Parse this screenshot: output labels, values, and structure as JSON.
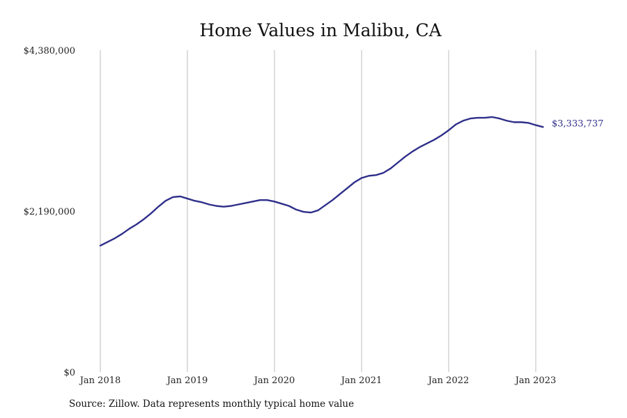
{
  "chart_data": {
    "type": "line",
    "title": "Home Values in Malibu, CA",
    "xlabel": "",
    "ylabel": "",
    "ylim": [
      0,
      4380000
    ],
    "y_ticks": [
      {
        "value": 0,
        "label": "$0"
      },
      {
        "value": 2190000,
        "label": "$2,190,000"
      },
      {
        "value": 4380000,
        "label": "$4,380,000"
      }
    ],
    "x_ticks": [
      {
        "value": "2018-01",
        "label": "Jan 2018"
      },
      {
        "value": "2019-01",
        "label": "Jan 2019"
      },
      {
        "value": "2020-01",
        "label": "Jan 2020"
      },
      {
        "value": "2021-01",
        "label": "Jan 2021"
      },
      {
        "value": "2022-01",
        "label": "Jan 2022"
      },
      {
        "value": "2023-01",
        "label": "Jan 2023"
      }
    ],
    "grid": {
      "vertical": true,
      "horizontal": false
    },
    "legend": "none",
    "series": [
      {
        "color": "#2e2f8a",
        "end_label": "$3,333,737",
        "x": [
          "2018-01",
          "2018-02",
          "2018-03",
          "2018-04",
          "2018-05",
          "2018-06",
          "2018-07",
          "2018-08",
          "2018-09",
          "2018-10",
          "2018-11",
          "2018-12",
          "2019-01",
          "2019-02",
          "2019-03",
          "2019-04",
          "2019-05",
          "2019-06",
          "2019-07",
          "2019-08",
          "2019-09",
          "2019-10",
          "2019-11",
          "2019-12",
          "2020-01",
          "2020-02",
          "2020-03",
          "2020-04",
          "2020-05",
          "2020-06",
          "2020-07",
          "2020-08",
          "2020-09",
          "2020-10",
          "2020-11",
          "2020-12",
          "2021-01",
          "2021-02",
          "2021-03",
          "2021-04",
          "2021-05",
          "2021-06",
          "2021-07",
          "2021-08",
          "2021-09",
          "2021-10",
          "2021-11",
          "2021-12",
          "2022-01",
          "2022-02",
          "2022-03",
          "2022-04",
          "2022-05",
          "2022-06",
          "2022-07",
          "2022-08",
          "2022-09",
          "2022-10",
          "2022-11",
          "2022-12",
          "2023-01",
          "2023-02"
        ],
        "values": [
          1720000,
          1770000,
          1820000,
          1880000,
          1950000,
          2010000,
          2080000,
          2160000,
          2250000,
          2330000,
          2380000,
          2390000,
          2360000,
          2330000,
          2310000,
          2280000,
          2260000,
          2250000,
          2260000,
          2280000,
          2300000,
          2320000,
          2340000,
          2340000,
          2320000,
          2290000,
          2260000,
          2210000,
          2180000,
          2170000,
          2200000,
          2270000,
          2340000,
          2420000,
          2500000,
          2580000,
          2640000,
          2670000,
          2680000,
          2710000,
          2770000,
          2850000,
          2930000,
          3000000,
          3060000,
          3110000,
          3160000,
          3220000,
          3290000,
          3370000,
          3420000,
          3450000,
          3460000,
          3460000,
          3470000,
          3450000,
          3420000,
          3400000,
          3400000,
          3390000,
          3360000,
          3334000
        ]
      }
    ]
  },
  "footer": {
    "source_note": "Source: Zillow. Data represents monthly typical home value"
  }
}
